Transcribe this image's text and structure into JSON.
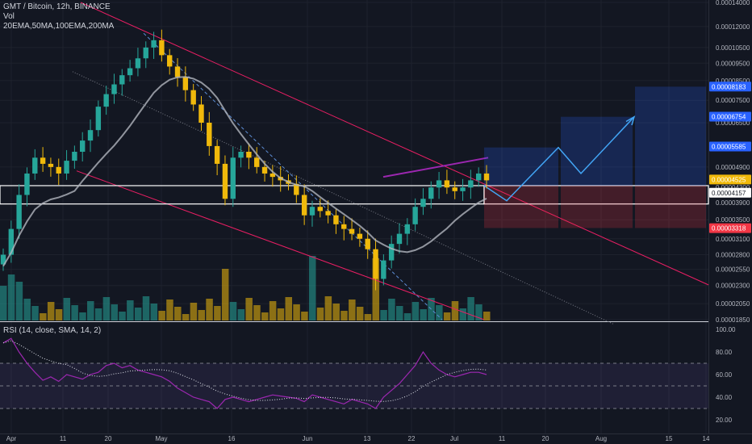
{
  "header": {
    "symbol_line": "GMT / Bitcoin, 12h, BINANCE",
    "vol_label": "Vol",
    "ma_label": "20EMA,50MA,100EMA,200MA",
    "rsi_label": "RSI (14, close, SMA, 14, 2)"
  },
  "colors": {
    "background": "#131722",
    "up": "#26a69a",
    "down": "#f0b90b",
    "channel": "#e91e63",
    "rsi": "#9c27b0",
    "target_box": "#2962ff",
    "stop_box": "#f23645",
    "ma": "#b2b5be"
  },
  "chart_data": [
    {
      "type": "candlestick",
      "title": "GMT / Bitcoin, 12h, BINANCE",
      "y_scale": "log",
      "ylim": [
        1.85e-05,
        0.00014
      ],
      "y_ticks": [
        "0.00014000",
        "0.00012000",
        "0.00010500",
        "0.00009500",
        "0.00008500",
        "0.00007500",
        "0.00006500",
        "0.00004900",
        "0.00004300",
        "0.00003900",
        "0.00003500",
        "0.00003100",
        "0.00002800",
        "0.00002550",
        "0.00002300",
        "0.00002050",
        "0.00001850"
      ],
      "x_ticks": [
        "Apr",
        "11",
        "20",
        "May",
        "16",
        "Jun",
        "13",
        "22",
        "Jul",
        "11",
        "20",
        "Aug",
        "15",
        "14"
      ],
      "closes": [
        2.8e-05,
        3.3e-05,
        4.1e-05,
        4.7e-05,
        5.2e-05,
        5e-05,
        4.9e-05,
        4.7e-05,
        5.1e-05,
        5.4e-05,
        5.8e-05,
        6.2e-05,
        7.2e-05,
        7.8e-05,
        8.3e-05,
        8.8e-05,
        9.2e-05,
        9.8e-05,
        0.000105,
        0.00011,
        0.0001,
        9.3e-05,
        8.7e-05,
        8e-05,
        7.3e-05,
        6.5e-05,
        5.6e-05,
        5e-05,
        4e-05,
        5.2e-05,
        5.4e-05,
        5.2e-05,
        4.9e-05,
        4.7e-05,
        4.6e-05,
        4.5e-05,
        4.4e-05,
        4.1e-05,
        3.6e-05,
        3.8e-05,
        3.7e-05,
        3.6e-05,
        3.4e-05,
        3.3e-05,
        3.2e-05,
        3.1e-05,
        2.9e-05,
        2.4e-05,
        2.7e-05,
        3e-05,
        3.2e-05,
        3.4e-05,
        3.8e-05,
        4e-05,
        4.3e-05,
        4.5e-05,
        4.3e-05,
        4.2e-05,
        4.3e-05,
        4.5e-05,
        4.7e-05,
        4.5e-05
      ],
      "price_labels": [
        {
          "value": "0.00008183",
          "color": "#2962ff"
        },
        {
          "value": "0.00006754",
          "color": "#2962ff"
        },
        {
          "value": "0.00005585",
          "color": "#2962ff"
        },
        {
          "value": "0.00004525",
          "color": "#f0b90b"
        },
        {
          "value": "0.00004157",
          "color": "#ffffff"
        },
        {
          "value": "0.00003318",
          "color": "#f23645"
        }
      ],
      "projection_path": [
        4.35e-05,
        3.95e-05,
        5.55e-05,
        4.7e-05,
        6.75e-05
      ],
      "support_zone": [
        3.87e-05,
        4.35e-05
      ],
      "target_levels": [
        5.55e-05,
        6.75e-05,
        8.18e-05
      ],
      "stop_level": 3.32e-05
    },
    {
      "type": "line",
      "title": "RSI (14, close, SMA, 14, 2)",
      "ylim": [
        15,
        100
      ],
      "y_ticks": [
        "100.00",
        "80.00",
        "60.00",
        "40.00",
        "20.00"
      ],
      "bands": [
        30,
        50,
        70
      ],
      "series": [
        {
          "name": "RSI",
          "values": [
            88,
            92,
            80,
            70,
            62,
            55,
            58,
            54,
            60,
            58,
            56,
            60,
            62,
            68,
            70,
            66,
            68,
            64,
            62,
            60,
            58,
            54,
            48,
            44,
            40,
            38,
            36,
            30,
            38,
            40,
            38,
            36,
            38,
            40,
            42,
            41,
            40,
            39,
            36,
            42,
            40,
            38,
            36,
            34,
            38,
            36,
            34,
            30,
            40,
            46,
            52,
            60,
            68,
            80,
            70,
            64,
            60,
            58,
            60,
            62,
            62,
            60
          ]
        }
      ]
    }
  ]
}
